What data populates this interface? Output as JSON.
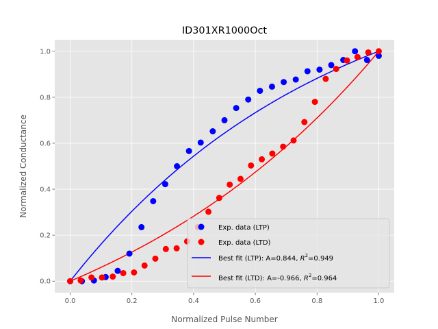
{
  "chart_data": {
    "type": "scatter",
    "title": "ID301XR1000Oct",
    "xlabel": "Normalized Pulse Number",
    "ylabel": "Normalized Conductance",
    "xlim": [
      -0.05,
      1.05
    ],
    "ylim": [
      -0.05,
      1.05
    ],
    "xticks": [
      0.0,
      0.2,
      0.4,
      0.6,
      0.8,
      1.0
    ],
    "yticks": [
      0.0,
      0.2,
      0.4,
      0.6,
      0.8,
      1.0
    ],
    "xtick_labels": [
      "0.0",
      "0.2",
      "0.4",
      "0.6",
      "0.8",
      "1.0"
    ],
    "ytick_labels": [
      "0.0",
      "0.2",
      "0.4",
      "0.6",
      "0.8",
      "1.0"
    ],
    "grid": true,
    "legend_position": "lower right",
    "series": [
      {
        "name": "Exp. data (LTP)",
        "kind": "scatter",
        "color": "#0000ff",
        "x": [
          0.0,
          0.038,
          0.077,
          0.115,
          0.154,
          0.192,
          0.231,
          0.269,
          0.308,
          0.346,
          0.385,
          0.423,
          0.462,
          0.5,
          0.538,
          0.577,
          0.615,
          0.654,
          0.692,
          0.731,
          0.769,
          0.808,
          0.846,
          0.885,
          0.923,
          0.962,
          1.0
        ],
        "y": [
          0.0,
          0.0,
          0.003,
          0.018,
          0.045,
          0.12,
          0.235,
          0.348,
          0.422,
          0.5,
          0.566,
          0.603,
          0.652,
          0.7,
          0.753,
          0.79,
          0.828,
          0.846,
          0.866,
          0.877,
          0.913,
          0.92,
          0.94,
          0.962,
          1.0,
          0.962,
          0.98
        ]
      },
      {
        "name": "Exp. data (LTD)",
        "kind": "scatter",
        "color": "#ff0000",
        "x": [
          0.0,
          0.034,
          0.069,
          0.103,
          0.138,
          0.172,
          0.207,
          0.241,
          0.276,
          0.31,
          0.345,
          0.379,
          0.414,
          0.448,
          0.483,
          0.517,
          0.552,
          0.586,
          0.621,
          0.655,
          0.69,
          0.724,
          0.759,
          0.793,
          0.828,
          0.862,
          0.897,
          0.931,
          0.966,
          1.0
        ],
        "y": [
          0.0,
          0.003,
          0.016,
          0.016,
          0.02,
          0.035,
          0.038,
          0.068,
          0.098,
          0.14,
          0.143,
          0.173,
          0.235,
          0.302,
          0.362,
          0.42,
          0.445,
          0.503,
          0.53,
          0.555,
          0.585,
          0.612,
          0.692,
          0.78,
          0.88,
          0.923,
          0.96,
          0.975,
          0.995,
          1.0
        ]
      },
      {
        "name": "Best fit (LTP): A=0.844, R²=0.949",
        "legend_prefix": "Best fit (LTP): A=0.844, ",
        "legend_r": "R",
        "legend_sup": "2",
        "legend_suffix": "=0.949",
        "kind": "line",
        "color": "#0000ff",
        "A": 0.844
      },
      {
        "name": "Best fit (LTD): A=-0.966, R²=0.964",
        "legend_prefix": "Best fit (LTD): A=-0.966, ",
        "legend_r": "R",
        "legend_sup": "2",
        "legend_suffix": "=0.964",
        "kind": "line",
        "color": "#ff0000",
        "A": -0.966
      }
    ]
  }
}
